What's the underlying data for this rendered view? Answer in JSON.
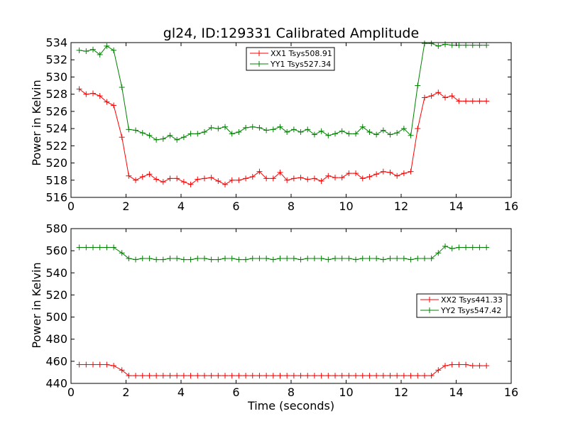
{
  "title": "gl24, ID:129331 Calibrated Amplitude",
  "chart_data": [
    {
      "type": "line",
      "title": "gl24, ID:129331 Calibrated Amplitude",
      "xlabel": "",
      "ylabel": "Power in Kelvin",
      "xlim": [
        0,
        16
      ],
      "ylim": [
        516,
        534
      ],
      "xticks": [
        0,
        2,
        4,
        6,
        8,
        10,
        12,
        14,
        16
      ],
      "yticks": [
        516,
        518,
        520,
        522,
        524,
        526,
        528,
        530,
        532,
        534
      ],
      "grid": false,
      "legend_position": "top-center",
      "x": [
        0.3,
        0.55,
        0.8,
        1.05,
        1.3,
        1.55,
        1.85,
        2.1,
        2.35,
        2.6,
        2.85,
        3.1,
        3.35,
        3.6,
        3.85,
        4.1,
        4.35,
        4.6,
        4.85,
        5.1,
        5.35,
        5.6,
        5.85,
        6.1,
        6.35,
        6.6,
        6.85,
        7.1,
        7.35,
        7.6,
        7.85,
        8.1,
        8.35,
        8.6,
        8.85,
        9.1,
        9.35,
        9.6,
        9.85,
        10.1,
        10.35,
        10.6,
        10.85,
        11.1,
        11.35,
        11.6,
        11.85,
        12.1,
        12.35,
        12.6,
        12.85,
        13.1,
        13.35,
        13.6,
        13.85,
        14.1,
        14.35,
        14.6,
        14.85,
        15.1
      ],
      "series": [
        {
          "name": "XX1 Tsys508.91",
          "color": "#ff0000",
          "values": [
            528.6,
            528.0,
            528.1,
            527.8,
            527.1,
            526.7,
            523.0,
            518.5,
            518.0,
            518.4,
            518.7,
            518.1,
            517.8,
            518.2,
            518.2,
            517.8,
            517.5,
            518.1,
            518.2,
            518.3,
            517.9,
            517.5,
            518.0,
            518.0,
            518.2,
            518.4,
            519.0,
            518.2,
            518.2,
            518.9,
            518.0,
            518.2,
            518.3,
            518.1,
            518.2,
            517.9,
            518.5,
            518.3,
            518.3,
            518.8,
            518.8,
            518.2,
            518.4,
            518.7,
            519.0,
            518.9,
            518.5,
            518.8,
            519.0,
            524.0,
            527.6,
            527.8,
            528.2,
            527.6,
            527.8,
            527.2,
            527.2,
            527.2,
            527.2,
            527.2
          ]
        },
        {
          "name": "YY1 Tsys527.34",
          "color": "#008000",
          "values": [
            533.1,
            533.0,
            533.2,
            532.6,
            533.6,
            533.1,
            528.8,
            523.9,
            523.8,
            523.5,
            523.2,
            522.7,
            522.8,
            523.2,
            522.7,
            523.0,
            523.4,
            523.4,
            523.6,
            524.1,
            524.0,
            524.2,
            523.4,
            523.6,
            524.1,
            524.2,
            524.1,
            523.8,
            523.9,
            524.2,
            523.6,
            523.9,
            523.6,
            523.9,
            523.3,
            523.7,
            523.2,
            523.4,
            523.7,
            523.4,
            523.4,
            524.2,
            523.6,
            523.3,
            523.8,
            523.3,
            523.5,
            524.0,
            523.2,
            529.0,
            533.9,
            533.9,
            533.6,
            533.8,
            533.7,
            533.7,
            533.7,
            533.7,
            533.7,
            533.7
          ]
        }
      ]
    },
    {
      "type": "line",
      "title": "",
      "xlabel": "Time (seconds)",
      "ylabel": "Power in Kelvin",
      "xlim": [
        0,
        16
      ],
      "ylim": [
        440,
        580
      ],
      "xticks": [
        0,
        2,
        4,
        6,
        8,
        10,
        12,
        14,
        16
      ],
      "yticks": [
        440,
        460,
        480,
        500,
        520,
        540,
        560,
        580
      ],
      "grid": false,
      "legend_position": "center-right",
      "x": [
        0.3,
        0.55,
        0.8,
        1.05,
        1.3,
        1.55,
        1.85,
        2.1,
        2.35,
        2.6,
        2.85,
        3.1,
        3.35,
        3.6,
        3.85,
        4.1,
        4.35,
        4.6,
        4.85,
        5.1,
        5.35,
        5.6,
        5.85,
        6.1,
        6.35,
        6.6,
        6.85,
        7.1,
        7.35,
        7.6,
        7.85,
        8.1,
        8.35,
        8.6,
        8.85,
        9.1,
        9.35,
        9.6,
        9.85,
        10.1,
        10.35,
        10.6,
        10.85,
        11.1,
        11.35,
        11.6,
        11.85,
        12.1,
        12.35,
        12.6,
        12.85,
        13.1,
        13.35,
        13.6,
        13.85,
        14.1,
        14.35,
        14.6,
        14.85,
        15.1
      ],
      "series": [
        {
          "name": "XX2 Tsys441.33",
          "color": "#ff0000",
          "values": [
            457,
            457,
            457,
            457,
            457,
            456,
            452,
            447,
            447,
            447,
            447,
            447,
            447,
            447,
            447,
            447,
            447,
            447,
            447,
            447,
            447,
            447,
            447,
            447,
            447,
            447,
            447,
            447,
            447,
            447,
            447,
            447,
            447,
            447,
            447,
            447,
            447,
            447,
            447,
            447,
            447,
            447,
            447,
            447,
            447,
            447,
            447,
            447,
            447,
            447,
            447,
            447,
            452,
            456,
            457,
            457,
            457,
            456,
            456,
            456
          ]
        },
        {
          "name": "YY2 Tsys547.42",
          "color": "#008000",
          "values": [
            563,
            563,
            563,
            563,
            563,
            563,
            558,
            553,
            552,
            553,
            553,
            552,
            552,
            553,
            553,
            552,
            552,
            553,
            553,
            552,
            552,
            553,
            553,
            552,
            552,
            553,
            553,
            553,
            552,
            553,
            553,
            553,
            552,
            553,
            553,
            553,
            552,
            553,
            553,
            553,
            552,
            553,
            553,
            553,
            552,
            553,
            553,
            553,
            552,
            553,
            553,
            553,
            558,
            564,
            562,
            563,
            563,
            563,
            563,
            563
          ]
        }
      ]
    }
  ]
}
